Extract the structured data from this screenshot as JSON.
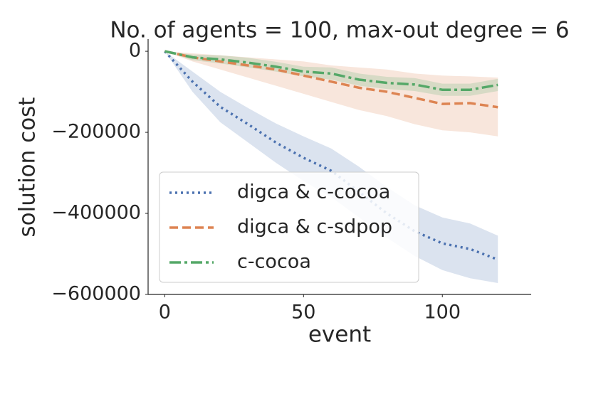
{
  "chart_data": {
    "type": "line",
    "title": "No. of agents = 100, max-out degree = 6",
    "xlabel": "event",
    "ylabel": "solution cost",
    "x": [
      0,
      10,
      20,
      30,
      40,
      50,
      60,
      70,
      80,
      90,
      100,
      110,
      120
    ],
    "series": [
      {
        "name": "digca & c-cocoa",
        "color": "#4c72b0",
        "dash": "3 5",
        "values": [
          0,
          -75000,
          -137000,
          -180000,
          -225000,
          -263000,
          -295000,
          -347000,
          -400000,
          -444000,
          -474000,
          -488000,
          -514000
        ],
        "lower": [
          0,
          -100000,
          -175000,
          -225000,
          -275000,
          -320000,
          -360000,
          -410000,
          -460000,
          -505000,
          -540000,
          -560000,
          -572000
        ],
        "upper": [
          0,
          -50000,
          -100000,
          -140000,
          -178000,
          -210000,
          -240000,
          -285000,
          -335000,
          -380000,
          -410000,
          -425000,
          -455000
        ]
      },
      {
        "name": "digca & c-sdpop",
        "color": "#dd8452",
        "dash": "12 6",
        "values": [
          0,
          -15000,
          -25000,
          -35000,
          -45000,
          -60000,
          -75000,
          -90000,
          -100000,
          -115000,
          -130000,
          -128000,
          -138000
        ],
        "lower": [
          0,
          -25000,
          -45000,
          -65000,
          -85000,
          -105000,
          -125000,
          -145000,
          -160000,
          -180000,
          -195000,
          -200000,
          -210000
        ],
        "upper": [
          0,
          -5000,
          -10000,
          -15000,
          -20000,
          -25000,
          -35000,
          -40000,
          -45000,
          -55000,
          -60000,
          -62000,
          -65000
        ]
      },
      {
        "name": "c-cocoa",
        "color": "#55a868",
        "dash": "16 5 4 5",
        "values": [
          0,
          -15000,
          -20000,
          -28000,
          -38000,
          -50000,
          -55000,
          -70000,
          -78000,
          -82000,
          -95000,
          -95000,
          -83000
        ],
        "lower": [
          0,
          -22000,
          -30000,
          -40000,
          -50000,
          -62000,
          -70000,
          -85000,
          -93000,
          -98000,
          -110000,
          -110000,
          -98000
        ],
        "upper": [
          0,
          -8000,
          -10000,
          -16000,
          -26000,
          -38000,
          -40000,
          -55000,
          -63000,
          -66000,
          -80000,
          -80000,
          -68000
        ]
      }
    ],
    "xlim": [
      -6,
      132
    ],
    "ylim": [
      -600000,
      30000
    ],
    "xticks": [
      0,
      50,
      100
    ],
    "yticks": [
      {
        "value": -600000,
        "label": "−600000"
      },
      {
        "value": -400000,
        "label": "−400000"
      },
      {
        "value": -200000,
        "label": "−200000"
      },
      0
    ],
    "legend": "lower left",
    "grid": false
  }
}
